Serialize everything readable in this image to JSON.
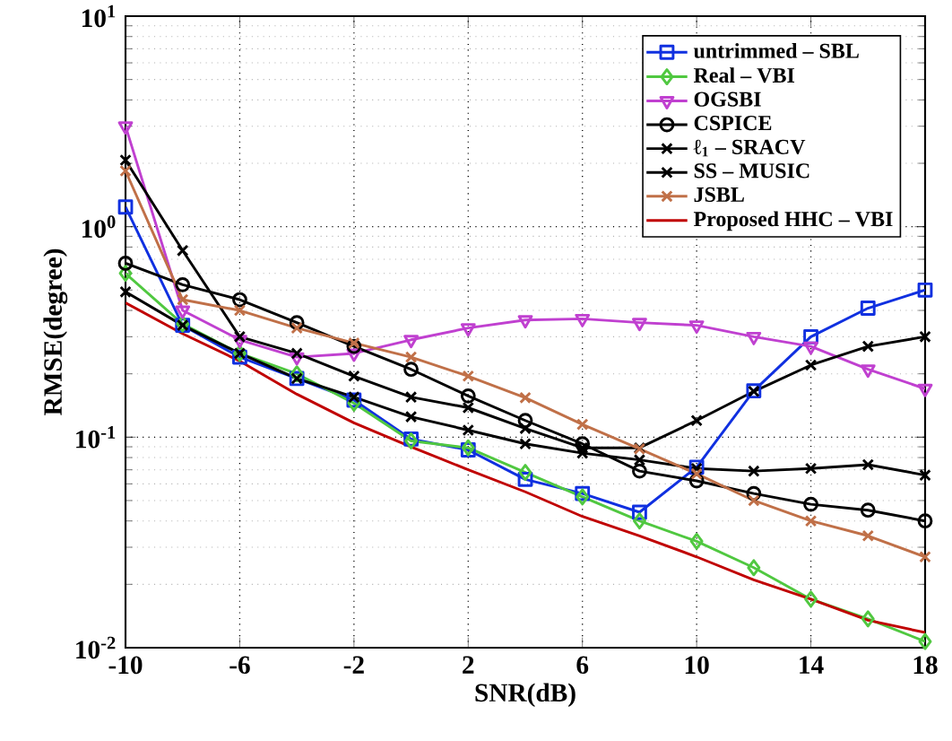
{
  "chart_data": {
    "type": "line",
    "xlabel": "SNR(dB)",
    "ylabel": "RMSE(degree)",
    "x": [
      -10,
      -8,
      -6,
      -4,
      -2,
      0,
      2,
      4,
      6,
      8,
      10,
      12,
      14,
      16,
      18
    ],
    "xlim": [
      -10,
      18
    ],
    "xticks": [
      -10,
      -6,
      -2,
      2,
      6,
      10,
      14,
      18
    ],
    "ylim": [
      0.01,
      10
    ],
    "yticks": [
      {
        "value": 0.01,
        "label": "10$^{-2}$"
      },
      {
        "value": 0.1,
        "label": "10$^{-1}$"
      },
      {
        "value": 1,
        "label": "10$^{0}$"
      },
      {
        "value": 10,
        "label": "10$^{1}$"
      }
    ],
    "log": "y",
    "grid": true,
    "legend": "top right",
    "series": [
      {
        "name": "untrimmed – SBL",
        "color": "#1030e0",
        "marker": "square",
        "values": [
          1.24,
          0.34,
          0.24,
          0.19,
          0.15,
          0.098,
          0.087,
          0.063,
          0.054,
          0.044,
          0.072,
          0.166,
          0.3,
          0.41,
          0.5
        ]
      },
      {
        "name": "Real – VBI",
        "color": "#50c840",
        "marker": "diamond",
        "values": [
          0.6,
          0.345,
          0.25,
          0.2,
          0.145,
          0.096,
          0.089,
          0.068,
          0.052,
          0.04,
          0.032,
          0.024,
          0.017,
          0.0137,
          0.0107
        ]
      },
      {
        "name": "OGSBI",
        "color": "#c040d0",
        "marker": "triangle",
        "values": [
          3.0,
          0.4,
          0.29,
          0.24,
          0.25,
          0.29,
          0.33,
          0.36,
          0.365,
          0.35,
          0.34,
          0.3,
          0.27,
          0.21,
          0.17
        ]
      },
      {
        "name": "CSPICE",
        "color": "#000000",
        "marker": "circle",
        "values": [
          0.67,
          0.53,
          0.45,
          0.35,
          0.27,
          0.21,
          0.157,
          0.12,
          0.093,
          0.069,
          0.062,
          0.054,
          0.048,
          0.045,
          0.04
        ]
      },
      {
        "name": "ℓ$_{1}$ – SRACV",
        "color": "#000000",
        "marker": "cross",
        "values": [
          2.07,
          0.77,
          0.3,
          0.25,
          0.195,
          0.155,
          0.138,
          0.11,
          0.089,
          0.089,
          0.12,
          0.165,
          0.22,
          0.27,
          0.3
        ]
      },
      {
        "name": "SS – MUSIC",
        "color": "#000000",
        "marker": "cross",
        "values": [
          0.49,
          0.34,
          0.25,
          0.19,
          0.155,
          0.125,
          0.108,
          0.093,
          0.084,
          0.078,
          0.071,
          0.069,
          0.071,
          0.074,
          0.066
        ]
      },
      {
        "name": "JSBL",
        "color": "#c07048",
        "marker": "cross",
        "values": [
          1.84,
          0.45,
          0.4,
          0.33,
          0.28,
          0.24,
          0.195,
          0.154,
          0.115,
          0.088,
          0.067,
          0.05,
          0.04,
          0.034,
          0.027
        ]
      },
      {
        "name": "Proposed HHC – VBI",
        "color": "#c00000",
        "marker": "none",
        "values": [
          0.435,
          0.31,
          0.23,
          0.16,
          0.117,
          0.09,
          0.07,
          0.055,
          0.042,
          0.034,
          0.027,
          0.021,
          0.017,
          0.0135,
          0.0118
        ]
      }
    ]
  }
}
